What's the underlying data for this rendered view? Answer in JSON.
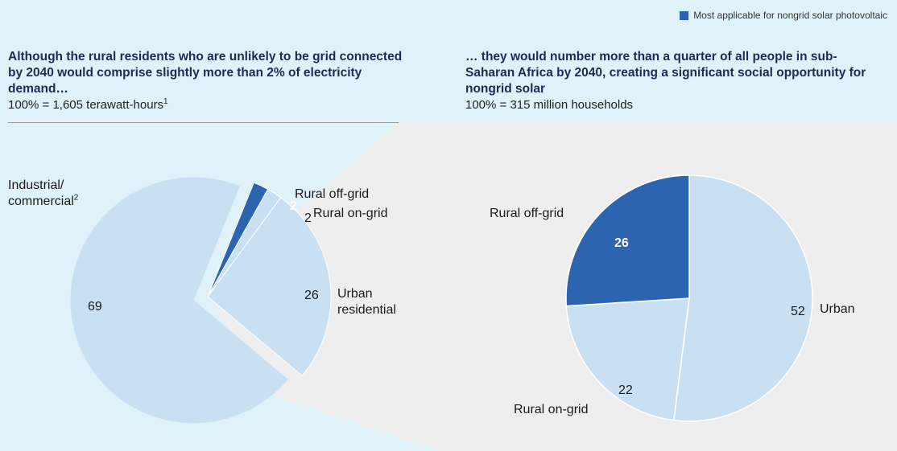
{
  "legend": {
    "label": "Most applicable for nongrid solar photovoltaic",
    "color": "#2c64b0"
  },
  "left_panel": {
    "title": "Although the rural residents who are unlikely to be grid connected by 2040 would comprise slightly more than 2% of electricity demand…",
    "subtitle": "100% = 1,605 terawatt-hours",
    "subtitle_sup": "1"
  },
  "right_panel": {
    "title": "… they would number more than a quarter of all people in sub-Saharan Africa by 2040, creating a significant social opportunity for nongrid solar",
    "subtitle": "100% = 315 million households"
  },
  "labels": {
    "industrial_line1": "Industrial/",
    "industrial_line2": "commercial",
    "industrial_sup": "2",
    "rural_offgrid": "Rural off-grid",
    "rural_ongrid": "Rural on-grid",
    "urban_res_line1": "Urban",
    "urban_res_line2": "residential",
    "r_rural_offgrid": "Rural off-grid",
    "r_rural_ongrid": "Rural on-grid",
    "r_urban": "Urban"
  },
  "colors": {
    "light": "#c9e0f3",
    "dark": "#2c64b0",
    "bg": "#dff1f9",
    "panel": "#eeeeee"
  },
  "chart_data": [
    {
      "type": "pie",
      "unit": "% of electricity demand",
      "slices": [
        {
          "name": "Rural off-grid",
          "value": 2,
          "highlight": true
        },
        {
          "name": "Rural on-grid",
          "value": 2,
          "highlight": false
        },
        {
          "name": "Urban residential",
          "value": 26,
          "highlight": false
        },
        {
          "name": "Industrial/commercial",
          "value": 69,
          "highlight": false,
          "exploded": true
        }
      ]
    },
    {
      "type": "pie",
      "unit": "% of households",
      "slices": [
        {
          "name": "Urban",
          "value": 52,
          "highlight": false
        },
        {
          "name": "Rural on-grid",
          "value": 22,
          "highlight": false
        },
        {
          "name": "Rural off-grid",
          "value": 26,
          "highlight": true
        }
      ]
    }
  ]
}
